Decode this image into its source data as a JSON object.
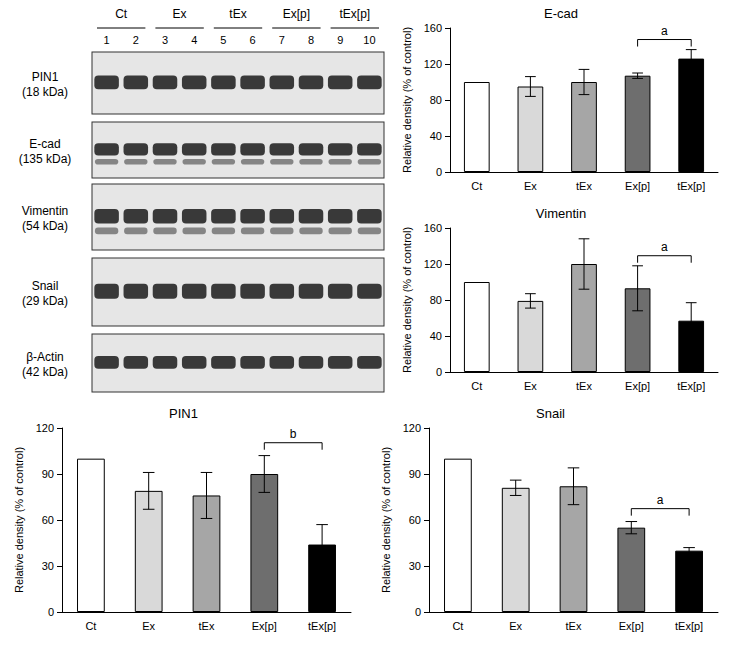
{
  "blot": {
    "groups": [
      "Ct",
      "Ex",
      "tEx",
      "Ex[p]",
      "tEx[p]"
    ],
    "lanes": [
      1,
      2,
      3,
      4,
      5,
      6,
      7,
      8,
      9,
      10
    ],
    "panels": [
      {
        "name": "PIN1",
        "size": "(18 kDa)"
      },
      {
        "name": "E-cad",
        "size": "(135 kDa)"
      },
      {
        "name": "Vimentin",
        "size": "(54 kDa)"
      },
      {
        "name": "Snail",
        "size": "(29 kDa)"
      },
      {
        "name": "β-Actin",
        "size": "(42 kDa)"
      }
    ]
  },
  "chart_data": [
    {
      "type": "bar",
      "title": "E-cad",
      "categories": [
        "Ct",
        "Ex",
        "tEx",
        "Ex[p]",
        "tEx[p]"
      ],
      "values": [
        100,
        95,
        100,
        107,
        126
      ],
      "errors": [
        null,
        11,
        14,
        3,
        10
      ],
      "colors": [
        "#ffffff",
        "#d9d9d9",
        "#a6a6a6",
        "#6e6e6e",
        "#000000"
      ],
      "ylabel": "Relative density (% of control)",
      "ylim": [
        0,
        160
      ],
      "yticks": [
        0,
        40,
        80,
        120,
        160
      ],
      "annotations": [
        {
          "text": "a",
          "from": "Ex[p]",
          "to": "tEx[p]"
        }
      ]
    },
    {
      "type": "bar",
      "title": "Vimentin",
      "categories": [
        "Ct",
        "Ex",
        "tEx",
        "Ex[p]",
        "tEx[p]"
      ],
      "values": [
        100,
        79,
        120,
        93,
        57
      ],
      "errors": [
        null,
        8,
        28,
        25,
        20
      ],
      "colors": [
        "#ffffff",
        "#d9d9d9",
        "#a6a6a6",
        "#6e6e6e",
        "#000000"
      ],
      "ylabel": "Relative density (% of control)",
      "ylim": [
        0,
        160
      ],
      "yticks": [
        0,
        40,
        80,
        120,
        160
      ],
      "annotations": [
        {
          "text": "a",
          "from": "Ex[p]",
          "to": "tEx[p]"
        }
      ]
    },
    {
      "type": "bar",
      "title": "PIN1",
      "categories": [
        "Ct",
        "Ex",
        "tEx",
        "Ex[p]",
        "tEx[p]"
      ],
      "values": [
        100,
        79,
        76,
        90,
        44
      ],
      "errors": [
        null,
        12,
        15,
        12,
        13
      ],
      "colors": [
        "#ffffff",
        "#d9d9d9",
        "#a6a6a6",
        "#6e6e6e",
        "#000000"
      ],
      "ylabel": "Relative density (% of control)",
      "ylim": [
        0,
        120
      ],
      "yticks": [
        0,
        30,
        60,
        90,
        120
      ],
      "annotations": [
        {
          "text": "b",
          "from": "Ex[p]",
          "to": "tEx[p]"
        }
      ]
    },
    {
      "type": "bar",
      "title": "Snail",
      "categories": [
        "Ct",
        "Ex",
        "tEx",
        "Ex[p]",
        "tEx[p]"
      ],
      "values": [
        100,
        81,
        82,
        55,
        40
      ],
      "errors": [
        null,
        5,
        12,
        4,
        2
      ],
      "colors": [
        "#ffffff",
        "#d9d9d9",
        "#a6a6a6",
        "#6e6e6e",
        "#000000"
      ],
      "ylabel": "Relative density (% of control)",
      "ylim": [
        0,
        120
      ],
      "yticks": [
        0,
        30,
        60,
        90,
        120
      ],
      "annotations": [
        {
          "text": "a",
          "from": "Ex[p]",
          "to": "tEx[p]"
        }
      ]
    }
  ]
}
